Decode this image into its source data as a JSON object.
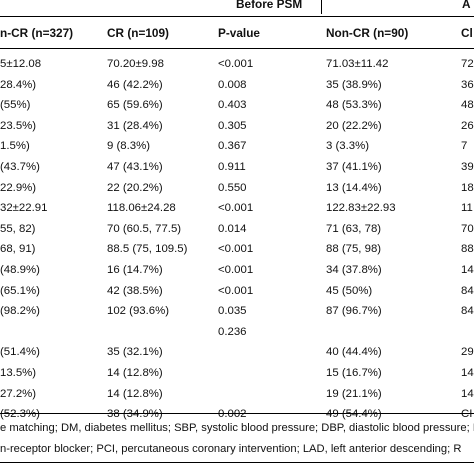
{
  "header_groups": {
    "before": "Before PSM",
    "after": "A"
  },
  "columns": [
    "n-CR (n=327)",
    "CR (n=109)",
    "P-value",
    "Non-CR (n=90)",
    "Cl"
  ],
  "rows": [
    [
      "5±12.08",
      "70.20±9.98",
      "<0.001",
      "71.03±11.42",
      "72"
    ],
    [
      "28.4%)",
      "46 (42.2%)",
      "0.008",
      "35 (38.9%)",
      "36"
    ],
    [
      "(55%)",
      "65 (59.6%)",
      "0.403",
      "48 (53.3%)",
      "48"
    ],
    [
      "23.5%)",
      "31 (28.4%)",
      "0.305",
      "20 (22.2%)",
      "26"
    ],
    [
      "1.5%)",
      "9 (8.3%)",
      "0.367",
      "3 (3.3%)",
      "7"
    ],
    [
      "(43.7%)",
      "47 (43.1%)",
      "0.911",
      "37 (41.1%)",
      "39"
    ],
    [
      "22.9%)",
      "22 (20.2%)",
      "0.550",
      "13 (14.4%)",
      "18"
    ],
    [
      "32±22.91",
      "118.06±24.28",
      "<0.001",
      "122.83±22.93",
      "11"
    ],
    [
      "55, 82)",
      "70 (60.5, 77.5)",
      "0.014",
      "71 (63, 78)",
      "70"
    ],
    [
      "68, 91)",
      "88.5 (75, 109.5)",
      "<0.001",
      "88 (75, 98)",
      "88"
    ],
    [
      "(48.9%)",
      "16 (14.7%)",
      "<0.001",
      "34 (37.8%)",
      "14"
    ],
    [
      "(65.1%)",
      "42 (38.5%)",
      "<0.001",
      "45 (50%)",
      "84"
    ],
    [
      "(98.2%)",
      "102 (93.6%)",
      "0.035",
      "87 (96.7%)",
      "84"
    ],
    [
      "",
      "",
      "0.236",
      "",
      ""
    ],
    [
      "(51.4%)",
      "35 (32.1%)",
      "",
      "40 (44.4%)",
      "29"
    ],
    [
      "13.5%)",
      "14 (12.8%)",
      "",
      "15 (16.7%)",
      "14"
    ],
    [
      "27.2%)",
      "14 (12.8%)",
      "",
      "19 (21.1%)",
      "14"
    ],
    [
      "(52.3%)",
      "38 (34.9%)",
      "0.002",
      "49 (54.4%)",
      "CI"
    ]
  ],
  "footnotes": [
    "e matching; DM, diabetes mellitus; SBP, systolic blood pressure; DBP, diastolic blood pressure; I",
    "n-receptor blocker; PCI, percutaneous coronary intervention; LAD, left anterior descending; R"
  ]
}
